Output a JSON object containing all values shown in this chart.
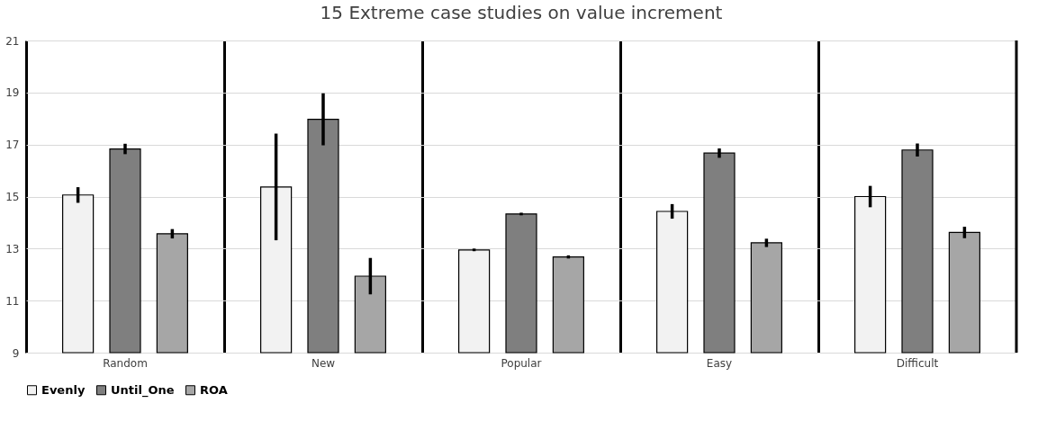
{
  "chart_data": {
    "type": "bar",
    "title": "15 Extreme case studies on value increment",
    "categories": [
      "Random",
      "New",
      "Popular",
      "Easy",
      "Difficult"
    ],
    "series": [
      {
        "name": "Evenly",
        "color": "#f2f2f2",
        "values": [
          15.06,
          15.37,
          12.95,
          14.43,
          15.0
        ],
        "errors": [
          0.3,
          2.05,
          0.05,
          0.28,
          0.41
        ]
      },
      {
        "name": "Until_One",
        "color": "#7f7f7f",
        "values": [
          16.83,
          17.97,
          14.33,
          16.67,
          16.79
        ],
        "errors": [
          0.2,
          1.0,
          0.05,
          0.18,
          0.25
        ]
      },
      {
        "name": "ROA",
        "color": "#a6a6a6",
        "values": [
          13.57,
          11.94,
          12.68,
          13.22,
          13.62
        ],
        "errors": [
          0.18,
          0.7,
          0.06,
          0.16,
          0.22
        ]
      }
    ],
    "ylim": [
      9,
      21
    ],
    "yticks": [
      9,
      11,
      13,
      15,
      17,
      19,
      21
    ],
    "grid": true,
    "legend": "bottom"
  }
}
